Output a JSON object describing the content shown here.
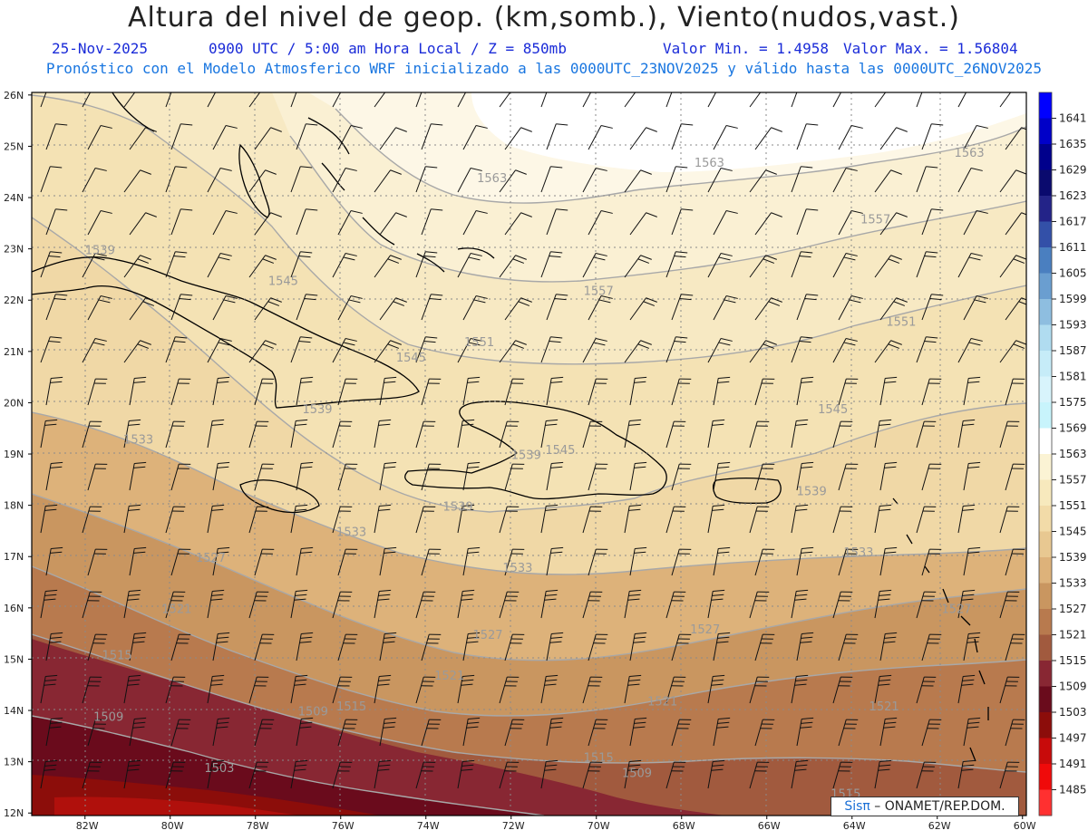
{
  "header": {
    "title": "Altura del nivel de geop. (km,somb.), Viento(nudos,vast.)",
    "date_time": "25-Nov-2025",
    "utc_local": "0900 UTC / 5:00 am Hora Local / Z = 850mb",
    "min_value": "Valor Min. = 1.4958",
    "max_value": "Valor Max. = 1.56804",
    "forecast_info": "Pronóstico con el Modelo Atmosferico WRF inicializado a las 0000UTC_23NOV2025 y válido hasta las  0000UTC_26NOV2025"
  },
  "axes": {
    "lat_labels": [
      "26N",
      "25N",
      "24N",
      "23N",
      "22N",
      "21N",
      "20N",
      "19N",
      "18N",
      "17N",
      "16N",
      "15N",
      "14N",
      "13N",
      "12N"
    ],
    "lon_labels": [
      "82W",
      "80W",
      "78W",
      "76W",
      "74W",
      "72W",
      "70W",
      "68W",
      "66W",
      "64W",
      "62W",
      "60W"
    ]
  },
  "contour_labels": [
    {
      "text": "1563",
      "lon": -72.8,
      "lat": 24.3
    },
    {
      "text": "1563",
      "lon": -67.7,
      "lat": 24.6
    },
    {
      "text": "1563",
      "lon": -61.6,
      "lat": 24.8
    },
    {
      "text": "1557",
      "lon": -63.8,
      "lat": 23.5
    },
    {
      "text": "1557",
      "lon": -70.3,
      "lat": 22.1
    },
    {
      "text": "1551",
      "lon": -63.2,
      "lat": 21.5
    },
    {
      "text": "1551",
      "lon": -73.1,
      "lat": 21.1
    },
    {
      "text": "1545",
      "lon": -64.8,
      "lat": 19.8
    },
    {
      "text": "1545",
      "lon": -77.7,
      "lat": 22.3
    },
    {
      "text": "1545",
      "lon": -74.7,
      "lat": 20.8
    },
    {
      "text": "1545",
      "lon": -71.2,
      "lat": 19.0
    },
    {
      "text": "1539",
      "lon": -82.0,
      "lat": 22.9
    },
    {
      "text": "1539",
      "lon": -76.9,
      "lat": 19.8
    },
    {
      "text": "1539",
      "lon": -72.0,
      "lat": 18.9
    },
    {
      "text": "1539",
      "lon": -65.3,
      "lat": 18.2
    },
    {
      "text": "1539",
      "lon": -73.6,
      "lat": 17.9
    },
    {
      "text": "1533",
      "lon": -81.1,
      "lat": 19.2
    },
    {
      "text": "1533",
      "lon": -76.1,
      "lat": 17.4
    },
    {
      "text": "1533",
      "lon": -72.2,
      "lat": 16.7
    },
    {
      "text": "1533",
      "lon": -64.2,
      "lat": 17.0
    },
    {
      "text": "1527",
      "lon": -79.4,
      "lat": 16.9
    },
    {
      "text": "1527",
      "lon": -72.9,
      "lat": 15.4
    },
    {
      "text": "1527",
      "lon": -67.8,
      "lat": 15.5
    },
    {
      "text": "1527",
      "lon": -61.9,
      "lat": 15.9
    },
    {
      "text": "1521",
      "lon": -80.2,
      "lat": 15.9
    },
    {
      "text": "1521",
      "lon": -73.8,
      "lat": 14.6
    },
    {
      "text": "1521",
      "lon": -68.8,
      "lat": 14.1
    },
    {
      "text": "1521",
      "lon": -63.6,
      "lat": 14.0
    },
    {
      "text": "1515",
      "lon": -81.6,
      "lat": 15.0
    },
    {
      "text": "1515",
      "lon": -76.1,
      "lat": 14.0
    },
    {
      "text": "1515",
      "lon": -70.3,
      "lat": 13.0
    },
    {
      "text": "1515",
      "lon": -64.5,
      "lat": 12.3
    },
    {
      "text": "1509",
      "lon": -81.8,
      "lat": 13.8
    },
    {
      "text": "1509",
      "lon": -77.0,
      "lat": 13.9
    },
    {
      "text": "1509",
      "lon": -69.4,
      "lat": 12.7
    },
    {
      "text": "1503",
      "lon": -79.2,
      "lat": 12.8
    }
  ],
  "legend": {
    "values": [
      "1641",
      "1635",
      "1629",
      "1623",
      "1617",
      "1611",
      "1605",
      "1599",
      "1593",
      "1587",
      "1581",
      "1575",
      "1569",
      "1563",
      "1557",
      "1551",
      "1545",
      "1539",
      "1533",
      "1527",
      "1521",
      "1515",
      "1509",
      "1503",
      "1497",
      "1491",
      "1485"
    ],
    "colors": [
      "#0000ff",
      "#0000c8",
      "#00008c",
      "#0a0a6e",
      "#232388",
      "#3350a8",
      "#4a7fc0",
      "#6a9ed0",
      "#8ebee0",
      "#b0dcf0",
      "#c6ecf8",
      "#d8f4fc",
      "#c8f4fc",
      "#ffffff",
      "#fbf3d4",
      "#f7e9bd",
      "#f2dba8",
      "#e8c891",
      "#ddb27a",
      "#c99660",
      "#b87a4e",
      "#a15a3e",
      "#882733",
      "#6a0b1c",
      "#8c0d0a",
      "#c80a0a",
      "#f00a0a",
      "#ff3030"
    ]
  },
  "credit": {
    "sis": "Sisπ",
    "org": " – ONAMET/REP.DOM."
  }
}
